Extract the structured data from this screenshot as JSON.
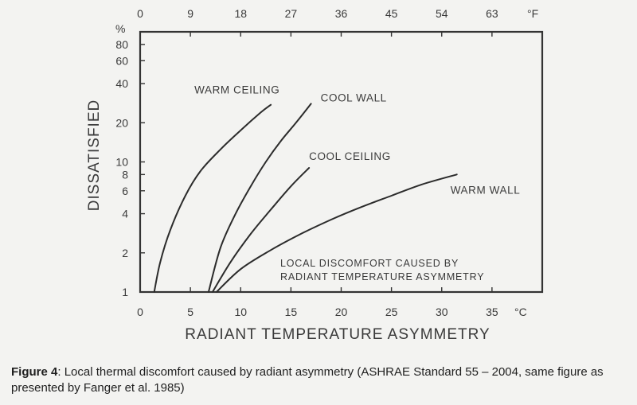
{
  "chart_data": {
    "type": "line",
    "xlabel": "RADIANT TEMPERATURE ASYMMETRY",
    "ylabel": "DISSATISFIED",
    "x_unit": "°C",
    "x2_unit": "°F",
    "y_unit": "%",
    "xlim": [
      0,
      40
    ],
    "ylim": [
      1,
      100
    ],
    "y_scale": "log",
    "x_ticks": [
      0,
      5,
      10,
      15,
      20,
      25,
      30,
      35
    ],
    "x2_ticks": [
      0,
      9,
      18,
      27,
      36,
      45,
      54,
      63
    ],
    "y_ticks": [
      1,
      2,
      4,
      6,
      8,
      10,
      20,
      40,
      60,
      80
    ],
    "grid": false,
    "annotation": "LOCAL DISCOMFORT CAUSED BY RADIANT TEMPERATURE ASYMMETRY",
    "series": [
      {
        "name": "WARM CEILING",
        "x": [
          1.4,
          2.0,
          3.0,
          4.5,
          6.0,
          8.0,
          10.0,
          12.0,
          13.0
        ],
        "y": [
          1.0,
          1.7,
          3.0,
          5.5,
          8.5,
          12.5,
          17.5,
          24.0,
          27.5
        ]
      },
      {
        "name": "COOL WALL",
        "x": [
          6.8,
          8.0,
          9.5,
          11.0,
          12.5,
          14.0,
          15.5,
          17.0
        ],
        "y": [
          1.0,
          2.2,
          4.0,
          6.5,
          10.0,
          14.5,
          20.0,
          28.0
        ]
      },
      {
        "name": "COOL CEILING",
        "x": [
          7.2,
          9.0,
          11.0,
          13.0,
          15.0,
          16.8
        ],
        "y": [
          1.0,
          1.7,
          2.8,
          4.3,
          6.5,
          9.0
        ]
      },
      {
        "name": "WARM WALL",
        "x": [
          7.6,
          10.0,
          13.0,
          16.0,
          19.0,
          22.0,
          25.0,
          28.0,
          31.5
        ],
        "y": [
          1.0,
          1.5,
          2.1,
          2.8,
          3.6,
          4.5,
          5.5,
          6.7,
          8.0
        ]
      }
    ]
  },
  "caption": {
    "label": "Figure 4",
    "text": ": Local thermal discomfort caused by radiant asymmetry (ASHRAE Standard 55 – 2004, same figure as presented by Fanger et al. 1985)"
  }
}
